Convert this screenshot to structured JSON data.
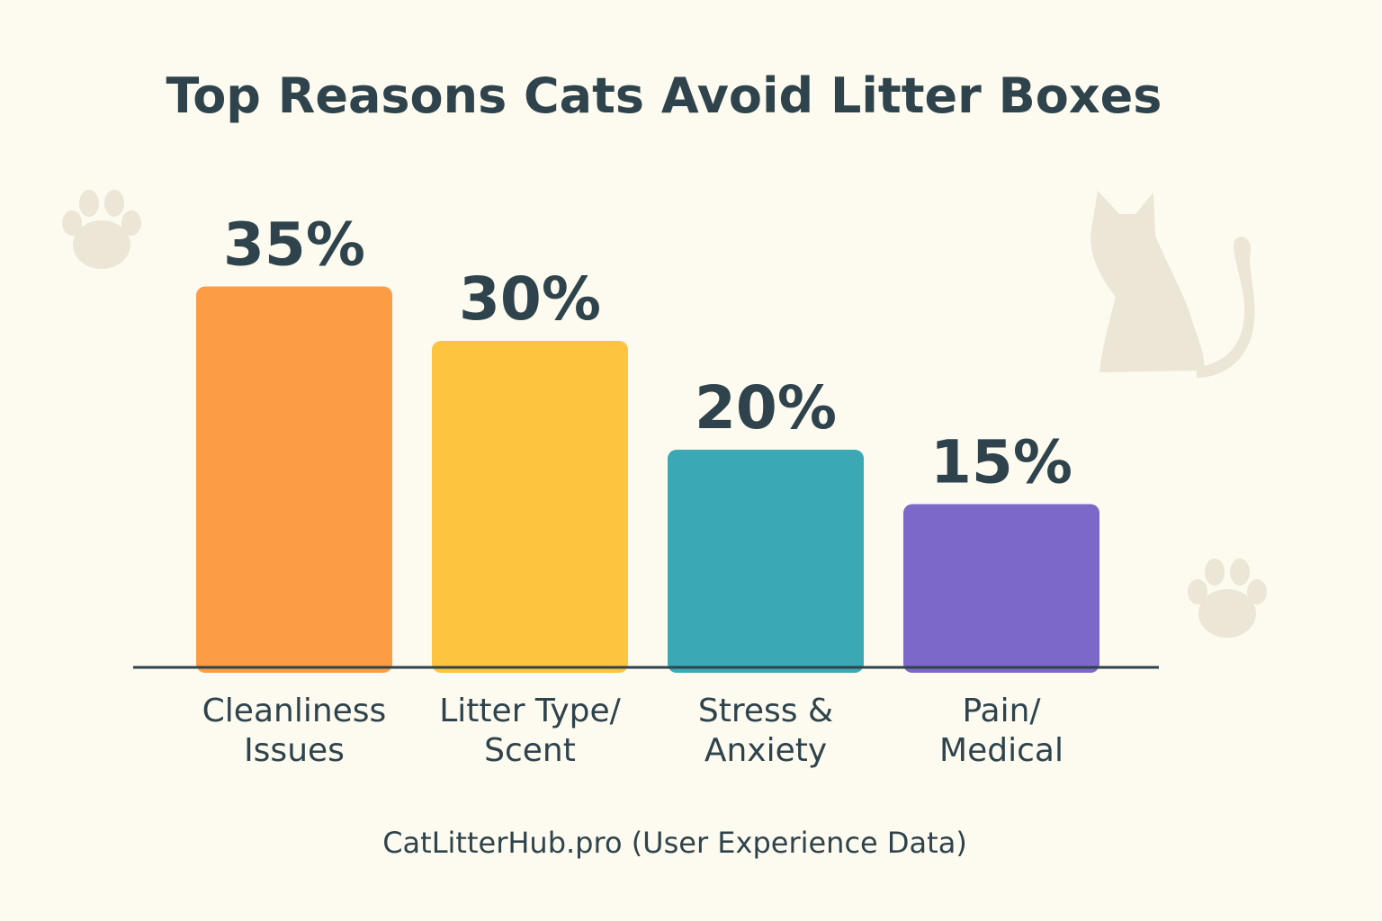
{
  "chart_data": {
    "type": "bar",
    "title": "Top Reasons Cats Avoid Litter Boxes",
    "categories": [
      [
        "Cleanliness",
        "Issues"
      ],
      [
        "Litter Type/",
        "Scent"
      ],
      [
        "Stress &",
        "Anxiety"
      ],
      [
        "Pain/",
        "Medical"
      ]
    ],
    "values": [
      35,
      30,
      20,
      15
    ],
    "value_labels": [
      "35%",
      "30%",
      "20%",
      "15%"
    ],
    "colors": [
      "#fc9c45",
      "#fdc43d",
      "#3ba9b5",
      "#7c68c8"
    ],
    "ylim": [
      0,
      40
    ],
    "xlabel": "",
    "ylabel": "",
    "grid": false,
    "source": "CatLitterHub.pro (User Experience Data)"
  },
  "decorations": {
    "icons": [
      "paw-print-icon",
      "paw-print-icon",
      "cat-silhouette-icon"
    ]
  }
}
